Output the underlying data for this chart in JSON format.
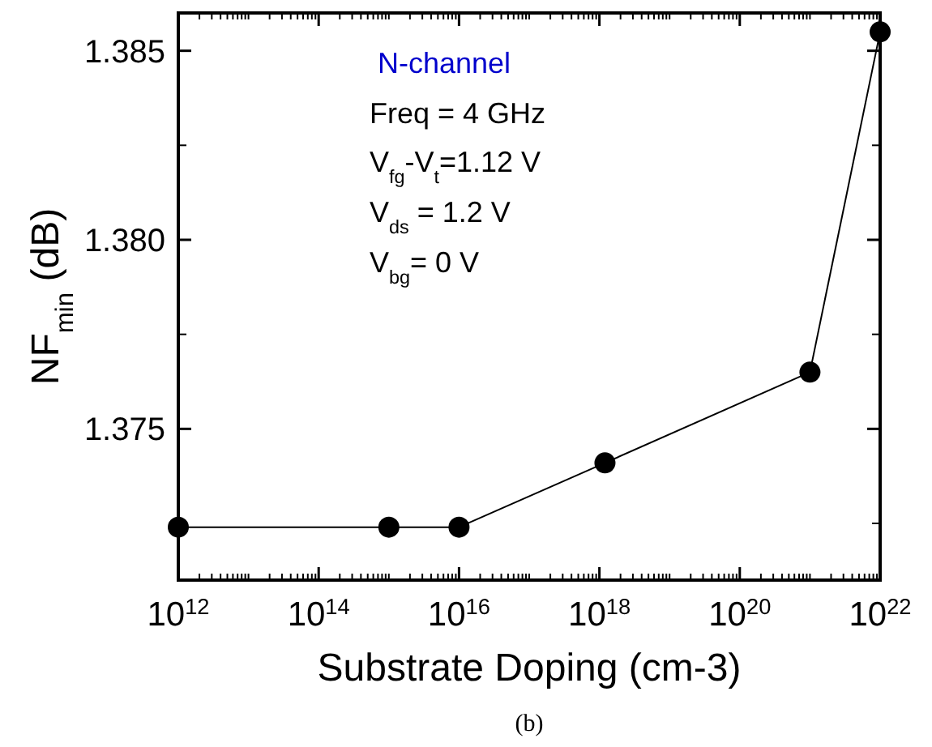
{
  "chart_data": {
    "type": "line",
    "xlabel": "Substrate Doping (cm-3)",
    "ylabel": "NF$_{min}$ (dB)",
    "log": "x",
    "marker": "circle",
    "line_style": "solid",
    "xlim": [
      1000000000000.0,
      1e+22
    ],
    "xticks": [
      {
        "value": 1000000000000.0,
        "label": "10$^{12}$"
      },
      {
        "value": 100000000000000.0,
        "label": "10$^{14}$"
      },
      {
        "value": 1e+16,
        "label": "10$^{16}$"
      },
      {
        "value": 1e+18,
        "label": "10$^{18}$"
      },
      {
        "value": 1e+20,
        "label": "10$^{20}$"
      },
      {
        "value": 1e+22,
        "label": "10$^{22}$"
      }
    ],
    "ylim": [
      1.371,
      1.386
    ],
    "yticks": [
      1.375,
      {
        "value": 1.38,
        "label": "1.380"
      },
      1.385
    ],
    "series": [
      {
        "color": "#000000",
        "x": [
          1000000000000.0,
          1000000000000000.0,
          1e+16,
          1.2e+18,
          1e+21,
          1e+22
        ],
        "values": [
          1.3724,
          1.3724,
          1.3724,
          1.3741,
          1.3765,
          1.3855
        ]
      }
    ],
    "annotations": [
      "N-channel",
      "Freq = 4 GHz",
      "V$_{fg}$-V$_{t}$=1.12 V",
      "V$_{ds}$ = 1.2 V",
      "V$_{bg}$=  0 V",
      "(b)"
    ]
  }
}
